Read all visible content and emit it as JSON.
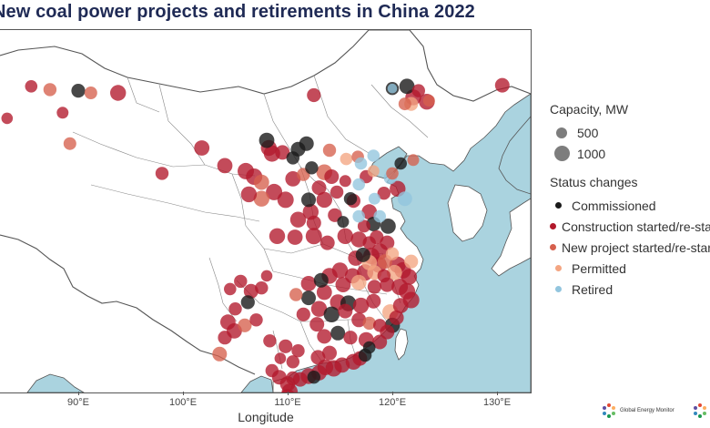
{
  "title": "New coal power projects and retirements in China 2022",
  "xaxis": {
    "label": "Longitude",
    "ticks": [
      "90°E",
      "100°E",
      "110°E",
      "120°E",
      "130°E"
    ]
  },
  "legend": {
    "capacity_title": "Capacity, MW",
    "capacity_items": [
      {
        "label": "500"
      },
      {
        "label": "1000"
      }
    ],
    "status_title": "Status changes",
    "status_items": [
      {
        "label": "Commissioned",
        "color": "#1a1a1a"
      },
      {
        "label": "Construction started/re-started",
        "color": "#b2182b"
      },
      {
        "label": "New project started/re-started",
        "color": "#d6604d"
      },
      {
        "label": "Permitted",
        "color": "#f4a582"
      },
      {
        "label": "Retired",
        "color": "#92c5de"
      }
    ]
  },
  "colors": {
    "sea": "#aad3df",
    "land": "#ffffff",
    "borders": "#555555",
    "commissioned": "#1a1a1a",
    "construction": "#b2182b",
    "new_project": "#d6604d",
    "permitted": "#f4a582",
    "retired": "#92c5de"
  },
  "logos": [
    {
      "name": "Global Energy Monitor",
      "text": "Global Energy Monitor"
    },
    {
      "name": "Global Energy Monitor",
      "text": "Global Energy Monitor"
    }
  ],
  "points": [
    {
      "lon": 85.5,
      "lat": 48.2,
      "status": "construction",
      "mw": 400
    },
    {
      "lon": 87.3,
      "lat": 47.9,
      "status": "new_project",
      "mw": 500
    },
    {
      "lon": 88.5,
      "lat": 45.8,
      "status": "construction",
      "mw": 350
    },
    {
      "lon": 90.0,
      "lat": 47.8,
      "status": "commissioned",
      "mw": 600
    },
    {
      "lon": 91.2,
      "lat": 47.6,
      "status": "new_project",
      "mw": 450
    },
    {
      "lon": 93.8,
      "lat": 47.6,
      "status": "construction",
      "mw": 900
    },
    {
      "lon": 89.2,
      "lat": 43.0,
      "status": "new_project",
      "mw": 450
    },
    {
      "lon": 83.2,
      "lat": 45.3,
      "status": "construction",
      "mw": 300
    },
    {
      "lon": 112.5,
      "lat": 47.4,
      "status": "construction",
      "mw": 600
    },
    {
      "lon": 120.0,
      "lat": 48.0,
      "status": "commissioned",
      "mw": 500
    },
    {
      "lon": 121.4,
      "lat": 48.2,
      "status": "commissioned",
      "mw": 800
    },
    {
      "lon": 122.5,
      "lat": 47.8,
      "status": "construction",
      "mw": 500
    },
    {
      "lon": 122.0,
      "lat": 47.2,
      "status": "construction",
      "mw": 900
    },
    {
      "lon": 121.8,
      "lat": 46.6,
      "status": "permitted",
      "mw": 600
    },
    {
      "lon": 121.2,
      "lat": 46.6,
      "status": "new_project",
      "mw": 450
    },
    {
      "lon": 123.3,
      "lat": 46.8,
      "status": "construction",
      "mw": 900
    },
    {
      "lon": 130.5,
      "lat": 48.3,
      "status": "construction",
      "mw": 700
    },
    {
      "lon": 123.5,
      "lat": 46.9,
      "status": "new_project",
      "mw": 350
    },
    {
      "lon": 120.0,
      "lat": 48.0,
      "status": "retired",
      "mw": 150
    },
    {
      "lon": 101.8,
      "lat": 42.6,
      "status": "construction",
      "mw": 800
    },
    {
      "lon": 108.0,
      "lat": 43.3,
      "status": "commissioned",
      "mw": 800
    },
    {
      "lon": 108.2,
      "lat": 42.6,
      "status": "construction",
      "mw": 900
    },
    {
      "lon": 108.5,
      "lat": 42.1,
      "status": "construction",
      "mw": 1000
    },
    {
      "lon": 109.5,
      "lat": 42.2,
      "status": "construction",
      "mw": 700
    },
    {
      "lon": 111.0,
      "lat": 42.5,
      "status": "commissioned",
      "mw": 700
    },
    {
      "lon": 111.8,
      "lat": 43.0,
      "status": "commissioned",
      "mw": 700
    },
    {
      "lon": 110.5,
      "lat": 41.7,
      "status": "commissioned",
      "mw": 500
    },
    {
      "lon": 114.0,
      "lat": 42.4,
      "status": "new_project",
      "mw": 500
    },
    {
      "lon": 115.6,
      "lat": 41.6,
      "status": "permitted",
      "mw": 400
    },
    {
      "lon": 116.7,
      "lat": 41.8,
      "status": "new_project",
      "mw": 400
    },
    {
      "lon": 117.0,
      "lat": 41.2,
      "status": "retired",
      "mw": 400
    },
    {
      "lon": 118.2,
      "lat": 41.9,
      "status": "retired",
      "mw": 400
    },
    {
      "lon": 117.5,
      "lat": 40.0,
      "status": "construction",
      "mw": 500
    },
    {
      "lon": 118.2,
      "lat": 40.5,
      "status": "permitted",
      "mw": 350
    },
    {
      "lon": 120.8,
      "lat": 41.2,
      "status": "commissioned",
      "mw": 400
    },
    {
      "lon": 122.0,
      "lat": 41.5,
      "status": "new_project",
      "mw": 350
    },
    {
      "lon": 120.0,
      "lat": 40.3,
      "status": "new_project",
      "mw": 400
    },
    {
      "lon": 119.8,
      "lat": 39.9,
      "status": "retired",
      "mw": 500
    },
    {
      "lon": 98.0,
      "lat": 40.3,
      "status": "construction",
      "mw": 500
    },
    {
      "lon": 104.0,
      "lat": 41.0,
      "status": "construction",
      "mw": 800
    },
    {
      "lon": 106.0,
      "lat": 40.5,
      "status": "construction",
      "mw": 1000
    },
    {
      "lon": 106.8,
      "lat": 40.0,
      "status": "construction",
      "mw": 1000
    },
    {
      "lon": 107.5,
      "lat": 39.5,
      "status": "new_project",
      "mw": 800
    },
    {
      "lon": 108.7,
      "lat": 38.6,
      "status": "construction",
      "mw": 1000
    },
    {
      "lon": 107.5,
      "lat": 38.0,
      "status": "new_project",
      "mw": 900
    },
    {
      "lon": 106.3,
      "lat": 38.4,
      "status": "construction",
      "mw": 900
    },
    {
      "lon": 109.8,
      "lat": 37.9,
      "status": "construction",
      "mw": 1000
    },
    {
      "lon": 110.5,
      "lat": 39.8,
      "status": "construction",
      "mw": 800
    },
    {
      "lon": 111.5,
      "lat": 40.2,
      "status": "new_project",
      "mw": 500
    },
    {
      "lon": 112.3,
      "lat": 40.8,
      "status": "commissioned",
      "mw": 500
    },
    {
      "lon": 113.5,
      "lat": 40.4,
      "status": "new_project",
      "mw": 900
    },
    {
      "lon": 114.2,
      "lat": 40.0,
      "status": "construction",
      "mw": 700
    },
    {
      "lon": 115.5,
      "lat": 39.6,
      "status": "construction",
      "mw": 350
    },
    {
      "lon": 116.8,
      "lat": 39.3,
      "status": "retired",
      "mw": 400
    },
    {
      "lon": 113.0,
      "lat": 39.0,
      "status": "construction",
      "mw": 700
    },
    {
      "lon": 112.0,
      "lat": 37.9,
      "status": "commissioned",
      "mw": 700
    },
    {
      "lon": 113.5,
      "lat": 37.9,
      "status": "construction",
      "mw": 900
    },
    {
      "lon": 114.7,
      "lat": 38.6,
      "status": "construction",
      "mw": 500
    },
    {
      "lon": 116.0,
      "lat": 38.0,
      "status": "commissioned",
      "mw": 500
    },
    {
      "lon": 116.3,
      "lat": 37.8,
      "status": "construction",
      "mw": 600
    },
    {
      "lon": 118.3,
      "lat": 38.0,
      "status": "retired",
      "mw": 350
    },
    {
      "lon": 119.2,
      "lat": 38.5,
      "status": "construction",
      "mw": 500
    },
    {
      "lon": 120.5,
      "lat": 38.9,
      "status": "construction",
      "mw": 900
    },
    {
      "lon": 121.2,
      "lat": 38.0,
      "status": "retired",
      "mw": 700
    },
    {
      "lon": 112.2,
      "lat": 36.8,
      "status": "construction",
      "mw": 900
    },
    {
      "lon": 111.0,
      "lat": 36.1,
      "status": "construction",
      "mw": 900
    },
    {
      "lon": 112.5,
      "lat": 35.8,
      "status": "construction",
      "mw": 700
    },
    {
      "lon": 114.5,
      "lat": 36.5,
      "status": "construction",
      "mw": 600
    },
    {
      "lon": 115.3,
      "lat": 35.9,
      "status": "commissioned",
      "mw": 350
    },
    {
      "lon": 116.8,
      "lat": 36.4,
      "status": "retired",
      "mw": 400
    },
    {
      "lon": 117.8,
      "lat": 36.8,
      "status": "construction",
      "mw": 800
    },
    {
      "lon": 118.8,
      "lat": 36.4,
      "status": "retired",
      "mw": 400
    },
    {
      "lon": 118.2,
      "lat": 35.7,
      "status": "commissioned",
      "mw": 700
    },
    {
      "lon": 119.6,
      "lat": 35.5,
      "status": "commissioned",
      "mw": 800
    },
    {
      "lon": 117.3,
      "lat": 35.5,
      "status": "construction",
      "mw": 450
    },
    {
      "lon": 109.0,
      "lat": 34.6,
      "status": "construction",
      "mw": 900
    },
    {
      "lon": 110.7,
      "lat": 34.5,
      "status": "construction",
      "mw": 800
    },
    {
      "lon": 112.5,
      "lat": 34.6,
      "status": "construction",
      "mw": 1000
    },
    {
      "lon": 113.8,
      "lat": 34.0,
      "status": "construction",
      "mw": 700
    },
    {
      "lon": 115.5,
      "lat": 34.6,
      "status": "construction",
      "mw": 900
    },
    {
      "lon": 116.8,
      "lat": 34.3,
      "status": "construction",
      "mw": 900
    },
    {
      "lon": 117.8,
      "lat": 34.0,
      "status": "construction",
      "mw": 500
    },
    {
      "lon": 118.5,
      "lat": 34.5,
      "status": "construction",
      "mw": 600
    },
    {
      "lon": 119.5,
      "lat": 34.0,
      "status": "construction",
      "mw": 700
    },
    {
      "lon": 120.0,
      "lat": 33.0,
      "status": "permitted",
      "mw": 500
    },
    {
      "lon": 118.8,
      "lat": 33.2,
      "status": "construction",
      "mw": 1000
    },
    {
      "lon": 118.0,
      "lat": 32.8,
      "status": "construction",
      "mw": 1000
    },
    {
      "lon": 117.2,
      "lat": 32.9,
      "status": "commissioned",
      "mw": 700
    },
    {
      "lon": 116.5,
      "lat": 32.6,
      "status": "construction",
      "mw": 800
    },
    {
      "lon": 117.8,
      "lat": 32.2,
      "status": "permitted",
      "mw": 800
    },
    {
      "lon": 118.7,
      "lat": 32.0,
      "status": "construction",
      "mw": 900
    },
    {
      "lon": 119.3,
      "lat": 32.3,
      "status": "new_project",
      "mw": 700
    },
    {
      "lon": 120.5,
      "lat": 32.0,
      "status": "construction",
      "mw": 1000
    },
    {
      "lon": 121.0,
      "lat": 31.5,
      "status": "construction",
      "mw": 1000
    },
    {
      "lon": 121.6,
      "lat": 30.9,
      "status": "construction",
      "mw": 900
    },
    {
      "lon": 120.2,
      "lat": 31.3,
      "status": "permitted",
      "mw": 800
    },
    {
      "lon": 121.8,
      "lat": 32.3,
      "status": "permitted",
      "mw": 600
    },
    {
      "lon": 117.4,
      "lat": 31.3,
      "status": "construction",
      "mw": 1000
    },
    {
      "lon": 116.2,
      "lat": 31.0,
      "status": "construction",
      "mw": 800
    },
    {
      "lon": 118.3,
      "lat": 31.3,
      "status": "permitted",
      "mw": 700
    },
    {
      "lon": 119.2,
      "lat": 31.0,
      "status": "construction",
      "mw": 500
    },
    {
      "lon": 115.0,
      "lat": 31.5,
      "status": "construction",
      "mw": 900
    },
    {
      "lon": 114.0,
      "lat": 31.0,
      "status": "construction",
      "mw": 900
    },
    {
      "lon": 113.2,
      "lat": 30.6,
      "status": "commissioned",
      "mw": 700
    },
    {
      "lon": 112.0,
      "lat": 30.3,
      "status": "construction",
      "mw": 800
    },
    {
      "lon": 115.3,
      "lat": 30.2,
      "status": "construction",
      "mw": 800
    },
    {
      "lon": 116.8,
      "lat": 30.4,
      "status": "permitted",
      "mw": 800
    },
    {
      "lon": 118.3,
      "lat": 30.0,
      "status": "construction",
      "mw": 600
    },
    {
      "lon": 119.5,
      "lat": 30.2,
      "status": "construction",
      "mw": 700
    },
    {
      "lon": 120.7,
      "lat": 30.0,
      "status": "construction",
      "mw": 1000
    },
    {
      "lon": 121.4,
      "lat": 29.6,
      "status": "construction",
      "mw": 1000
    },
    {
      "lon": 121.8,
      "lat": 28.8,
      "status": "construction",
      "mw": 1000
    },
    {
      "lon": 120.8,
      "lat": 28.3,
      "status": "construction",
      "mw": 800
    },
    {
      "lon": 113.5,
      "lat": 29.5,
      "status": "construction",
      "mw": 800
    },
    {
      "lon": 112.0,
      "lat": 29.0,
      "status": "commissioned",
      "mw": 700
    },
    {
      "lon": 110.8,
      "lat": 29.3,
      "status": "new_project",
      "mw": 500
    },
    {
      "lon": 114.8,
      "lat": 28.6,
      "status": "construction",
      "mw": 900
    },
    {
      "lon": 115.8,
      "lat": 28.5,
      "status": "commissioned",
      "mw": 900
    },
    {
      "lon": 117.0,
      "lat": 28.3,
      "status": "construction",
      "mw": 900
    },
    {
      "lon": 118.2,
      "lat": 28.7,
      "status": "construction",
      "mw": 700
    },
    {
      "lon": 119.8,
      "lat": 27.7,
      "status": "permitted",
      "mw": 900
    },
    {
      "lon": 113.0,
      "lat": 28.0,
      "status": "construction",
      "mw": 900
    },
    {
      "lon": 114.2,
      "lat": 27.5,
      "status": "commissioned",
      "mw": 900
    },
    {
      "lon": 115.5,
      "lat": 27.8,
      "status": "construction",
      "mw": 700
    },
    {
      "lon": 116.8,
      "lat": 27.0,
      "status": "construction",
      "mw": 700
    },
    {
      "lon": 117.8,
      "lat": 26.7,
      "status": "new_project",
      "mw": 500
    },
    {
      "lon": 118.8,
      "lat": 26.5,
      "status": "construction",
      "mw": 500
    },
    {
      "lon": 120.0,
      "lat": 26.5,
      "status": "commissioned",
      "mw": 800
    },
    {
      "lon": 119.5,
      "lat": 25.9,
      "status": "construction",
      "mw": 700
    },
    {
      "lon": 120.4,
      "lat": 27.2,
      "status": "construction",
      "mw": 700
    },
    {
      "lon": 112.8,
      "lat": 26.6,
      "status": "construction",
      "mw": 700
    },
    {
      "lon": 111.5,
      "lat": 27.5,
      "status": "construction",
      "mw": 600
    },
    {
      "lon": 113.5,
      "lat": 25.5,
      "status": "construction",
      "mw": 700
    },
    {
      "lon": 114.8,
      "lat": 25.8,
      "status": "commissioned",
      "mw": 700
    },
    {
      "lon": 116.0,
      "lat": 25.4,
      "status": "construction",
      "mw": 600
    },
    {
      "lon": 117.5,
      "lat": 25.2,
      "status": "construction",
      "mw": 800
    },
    {
      "lon": 118.8,
      "lat": 25.0,
      "status": "construction",
      "mw": 700
    },
    {
      "lon": 117.8,
      "lat": 24.5,
      "status": "commissioned",
      "mw": 400
    },
    {
      "lon": 106.5,
      "lat": 29.6,
      "status": "construction",
      "mw": 700
    },
    {
      "lon": 107.5,
      "lat": 29.9,
      "status": "construction",
      "mw": 500
    },
    {
      "lon": 105.5,
      "lat": 30.5,
      "status": "construction",
      "mw": 500
    },
    {
      "lon": 104.5,
      "lat": 29.8,
      "status": "construction",
      "mw": 400
    },
    {
      "lon": 106.2,
      "lat": 28.6,
      "status": "commissioned",
      "mw": 600
    },
    {
      "lon": 105.0,
      "lat": 28.0,
      "status": "construction",
      "mw": 500
    },
    {
      "lon": 104.3,
      "lat": 26.8,
      "status": "construction",
      "mw": 800
    },
    {
      "lon": 104.9,
      "lat": 26.0,
      "status": "construction",
      "mw": 800
    },
    {
      "lon": 105.9,
      "lat": 26.5,
      "status": "new_project",
      "mw": 600
    },
    {
      "lon": 107.0,
      "lat": 27.0,
      "status": "construction",
      "mw": 500
    },
    {
      "lon": 104.0,
      "lat": 25.4,
      "status": "construction",
      "mw": 600
    },
    {
      "lon": 103.5,
      "lat": 23.9,
      "status": "new_project",
      "mw": 700
    },
    {
      "lon": 108.0,
      "lat": 31.0,
      "status": "construction",
      "mw": 300
    },
    {
      "lon": 108.3,
      "lat": 25.1,
      "status": "construction",
      "mw": 500
    },
    {
      "lon": 109.8,
      "lat": 24.6,
      "status": "construction",
      "mw": 600
    },
    {
      "lon": 111.0,
      "lat": 24.2,
      "status": "construction",
      "mw": 500
    },
    {
      "lon": 110.5,
      "lat": 23.2,
      "status": "construction",
      "mw": 500
    },
    {
      "lon": 109.3,
      "lat": 23.5,
      "status": "construction",
      "mw": 300
    },
    {
      "lon": 108.5,
      "lat": 22.4,
      "status": "construction",
      "mw": 500
    },
    {
      "lon": 109.2,
      "lat": 21.8,
      "status": "construction",
      "mw": 700
    },
    {
      "lon": 110.0,
      "lat": 21.2,
      "status": "construction",
      "mw": 800
    },
    {
      "lon": 110.5,
      "lat": 21.7,
      "status": "construction",
      "mw": 600
    },
    {
      "lon": 111.2,
      "lat": 21.6,
      "status": "construction",
      "mw": 700
    },
    {
      "lon": 112.0,
      "lat": 21.9,
      "status": "construction",
      "mw": 900
    },
    {
      "lon": 113.0,
      "lat": 22.2,
      "status": "construction",
      "mw": 800
    },
    {
      "lon": 113.6,
      "lat": 22.7,
      "status": "construction",
      "mw": 900
    },
    {
      "lon": 114.4,
      "lat": 22.6,
      "status": "construction",
      "mw": 1000
    },
    {
      "lon": 115.2,
      "lat": 22.9,
      "status": "construction",
      "mw": 800
    },
    {
      "lon": 116.3,
      "lat": 23.2,
      "status": "construction",
      "mw": 900
    },
    {
      "lon": 116.9,
      "lat": 23.5,
      "status": "construction",
      "mw": 700
    },
    {
      "lon": 117.4,
      "lat": 23.8,
      "status": "commissioned",
      "mw": 500
    },
    {
      "lon": 112.9,
      "lat": 23.6,
      "status": "construction",
      "mw": 700
    },
    {
      "lon": 114.0,
      "lat": 24.0,
      "status": "construction",
      "mw": 700
    },
    {
      "lon": 112.5,
      "lat": 21.8,
      "status": "commissioned",
      "mw": 500
    },
    {
      "lon": 110.2,
      "lat": 20.5,
      "status": "construction",
      "mw": 900
    },
    {
      "lon": 110.0,
      "lat": 20.0,
      "status": "construction",
      "mw": 900
    },
    {
      "lon": 109.0,
      "lat": 19.6,
      "status": "construction",
      "mw": 700
    }
  ]
}
